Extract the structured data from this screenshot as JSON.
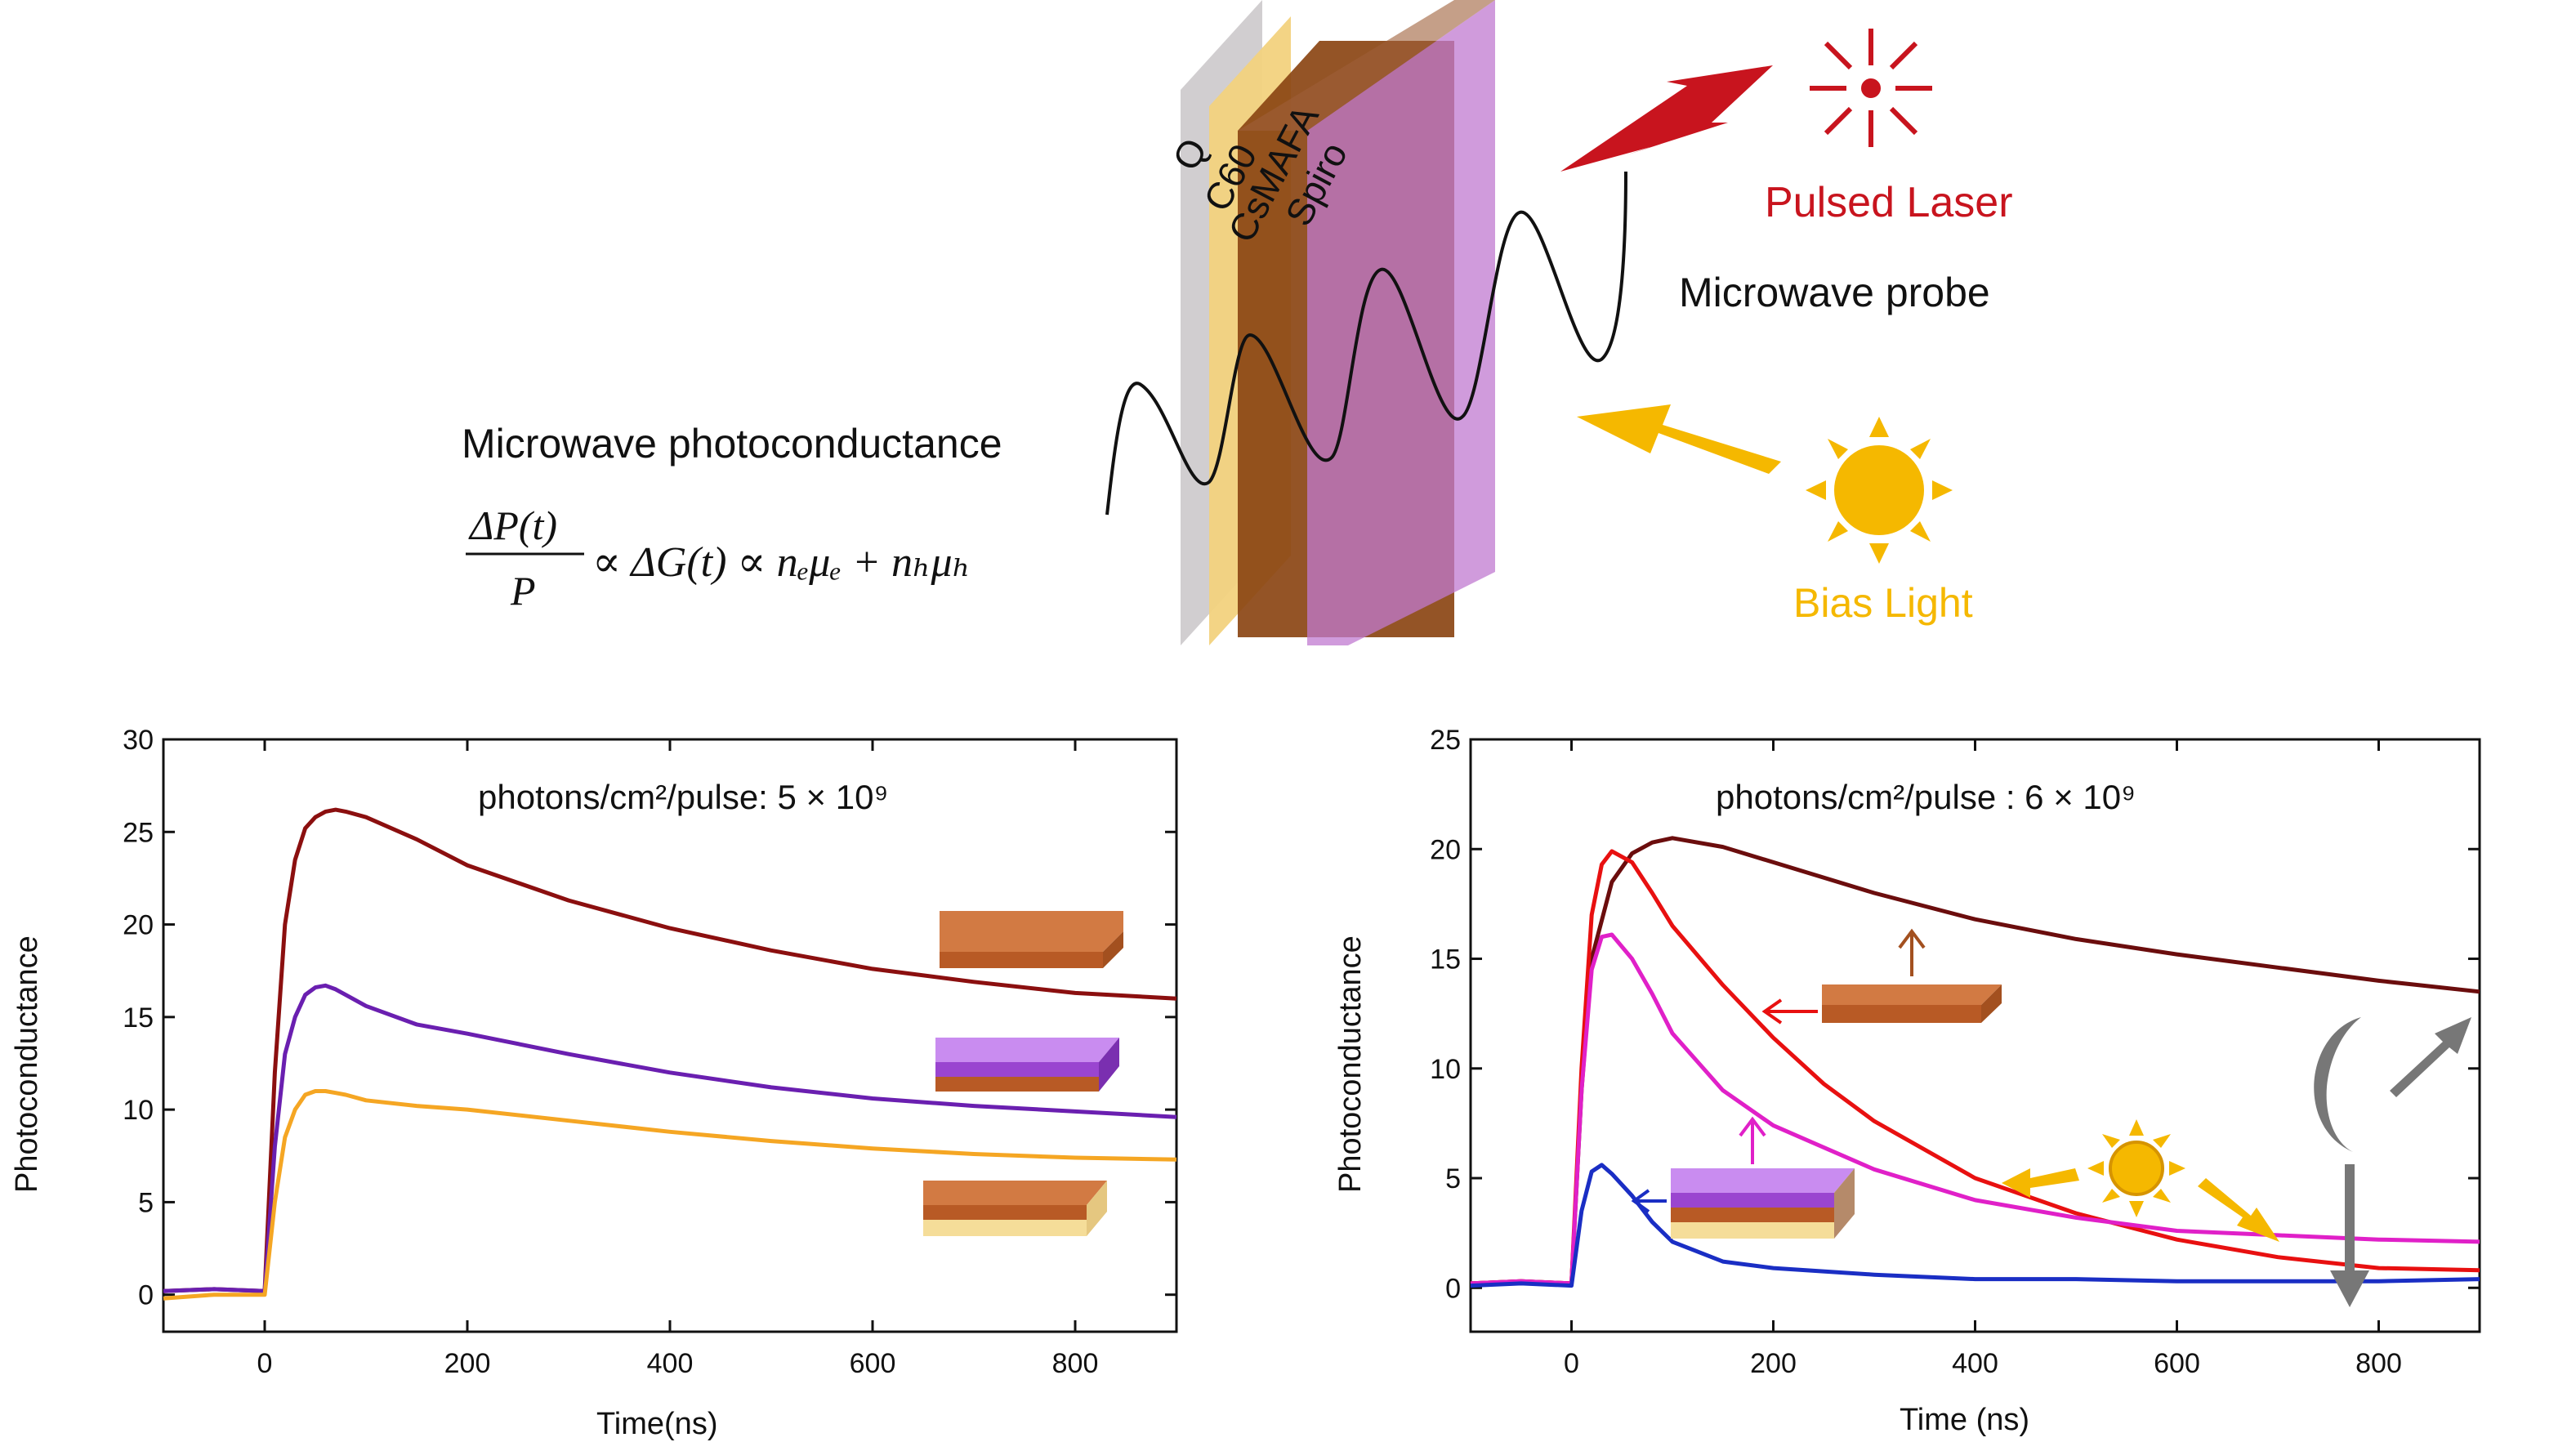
{
  "diagram": {
    "layers": [
      {
        "label": "Q",
        "color": "#c9c5c8"
      },
      {
        "label": "C60",
        "color": "#f2d27e"
      },
      {
        "label": "CsMAFA",
        "color": "#8b4513"
      },
      {
        "label": "Spiro",
        "color": "#c07ad0"
      }
    ],
    "pulsed_laser_label": "Pulsed Laser",
    "microwave_probe_label": "Microwave probe",
    "bias_light_label": "Bias Light",
    "photoconductance_title": "Microwave photoconductance",
    "equation": {
      "lhs_numerator": "ΔP(t)",
      "lhs_denominator": "P",
      "rhs": "∝ ΔG(t) ∝ nₑμₑ + nₕμₕ"
    },
    "colors": {
      "laser": "#c8141e",
      "bias": "#f5b800",
      "sun": "#f5b800"
    }
  },
  "chart_data": [
    {
      "type": "line",
      "annotation": "photons/cm²/pulse: 5 × 10⁹",
      "xlabel": "Time(ns)",
      "ylabel": "Photoconductance",
      "xlim": [
        -100,
        900
      ],
      "ylim": [
        -2,
        30
      ],
      "xticks": [
        0,
        200,
        400,
        600,
        800
      ],
      "yticks": [
        0,
        5,
        10,
        15,
        20,
        25,
        30
      ],
      "series": [
        {
          "color": "#8b0f0f",
          "x": [
            -100,
            -50,
            0,
            10,
            20,
            30,
            40,
            50,
            60,
            70,
            80,
            100,
            150,
            200,
            300,
            400,
            500,
            600,
            700,
            800,
            900
          ],
          "y": [
            0.2,
            0.3,
            0.2,
            12,
            20,
            23.5,
            25.2,
            25.8,
            26.1,
            26.2,
            26.1,
            25.8,
            24.6,
            23.2,
            21.3,
            19.8,
            18.6,
            17.6,
            16.9,
            16.3,
            16.0
          ]
        },
        {
          "color": "#6a1fb0",
          "x": [
            -100,
            -50,
            0,
            10,
            20,
            30,
            40,
            50,
            60,
            70,
            80,
            100,
            150,
            200,
            300,
            400,
            500,
            600,
            700,
            800,
            900
          ],
          "y": [
            0.2,
            0.3,
            0.2,
            8,
            13,
            15,
            16.2,
            16.6,
            16.7,
            16.5,
            16.2,
            15.6,
            14.6,
            14.1,
            13.0,
            12.0,
            11.2,
            10.6,
            10.2,
            9.9,
            9.6
          ]
        },
        {
          "color": "#f5a623",
          "x": [
            -100,
            -50,
            0,
            10,
            20,
            30,
            40,
            50,
            60,
            70,
            80,
            100,
            150,
            200,
            300,
            400,
            500,
            600,
            700,
            800,
            900
          ],
          "y": [
            -0.2,
            0.0,
            0.0,
            5,
            8.5,
            10,
            10.8,
            11.0,
            11.0,
            10.9,
            10.8,
            10.5,
            10.2,
            10.0,
            9.4,
            8.8,
            8.3,
            7.9,
            7.6,
            7.4,
            7.3
          ]
        }
      ]
    },
    {
      "type": "line",
      "annotation": "photons/cm²/pulse : 6 × 10⁹",
      "xlabel": "Time (ns)",
      "ylabel": "Photoconductance",
      "xlim": [
        -100,
        900
      ],
      "ylim": [
        -2,
        25
      ],
      "xticks": [
        0,
        200,
        400,
        600,
        800
      ],
      "yticks": [
        0,
        5,
        10,
        15,
        20,
        25
      ],
      "series": [
        {
          "color": "#6b0d0d",
          "x": [
            -100,
            -50,
            0,
            10,
            20,
            40,
            60,
            80,
            100,
            150,
            200,
            300,
            400,
            500,
            600,
            700,
            800,
            900
          ],
          "y": [
            0.2,
            0.3,
            0.2,
            9,
            15,
            18.5,
            19.8,
            20.3,
            20.5,
            20.1,
            19.4,
            18.0,
            16.8,
            15.9,
            15.2,
            14.6,
            14.0,
            13.5
          ]
        },
        {
          "color": "#e81010",
          "x": [
            -100,
            -50,
            0,
            10,
            20,
            30,
            40,
            60,
            80,
            100,
            150,
            200,
            250,
            300,
            400,
            500,
            600,
            700,
            800,
            900
          ],
          "y": [
            0.2,
            0.3,
            0.2,
            10,
            17,
            19.3,
            19.9,
            19.4,
            18.0,
            16.5,
            13.8,
            11.4,
            9.3,
            7.6,
            5.0,
            3.4,
            2.2,
            1.4,
            0.9,
            0.8
          ]
        },
        {
          "color": "#e020c8",
          "x": [
            -100,
            -50,
            0,
            10,
            20,
            30,
            40,
            60,
            80,
            100,
            150,
            200,
            300,
            400,
            500,
            600,
            700,
            800,
            900
          ],
          "y": [
            0.2,
            0.3,
            0.2,
            9,
            14.5,
            16.0,
            16.1,
            15.0,
            13.4,
            11.6,
            9.0,
            7.4,
            5.4,
            4.0,
            3.2,
            2.6,
            2.4,
            2.2,
            2.1
          ]
        },
        {
          "color": "#1a2ec4",
          "x": [
            -100,
            -50,
            0,
            10,
            20,
            30,
            40,
            60,
            80,
            100,
            150,
            200,
            300,
            400,
            500,
            600,
            700,
            800,
            900
          ],
          "y": [
            0.1,
            0.2,
            0.1,
            3.5,
            5.3,
            5.6,
            5.2,
            4.2,
            3.0,
            2.1,
            1.2,
            0.9,
            0.6,
            0.4,
            0.4,
            0.3,
            0.3,
            0.3,
            0.4
          ]
        }
      ]
    }
  ]
}
